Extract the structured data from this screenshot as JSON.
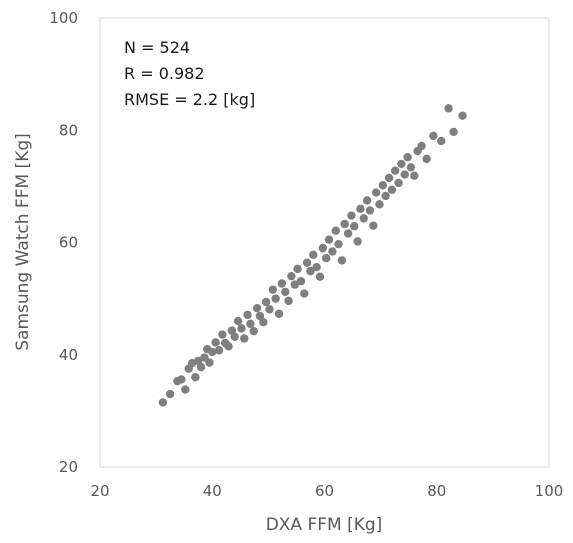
{
  "chart_data": {
    "type": "scatter",
    "title": "",
    "xlabel": "DXA FFM [Kg]",
    "ylabel": "Samsung Watch FFM [Kg]",
    "xlim": [
      20,
      100
    ],
    "ylim": [
      20,
      100
    ],
    "x_ticks": [
      "20",
      "40",
      "60",
      "80",
      "100"
    ],
    "y_ticks": [
      "20",
      "40",
      "60",
      "80",
      "100"
    ],
    "grid": false,
    "legend": "none",
    "marker_color": "#7f7f7f",
    "annotations": [
      "N = 524",
      "R = 0.982",
      "RMSE = 2.2 [kg]"
    ],
    "series": [
      {
        "x": [
          31.2,
          32.5,
          33.8,
          34.5,
          35.2,
          35.8,
          36.4,
          37.0,
          37.5,
          38.0,
          38.6,
          39.1,
          39.5,
          40.0,
          40.6,
          41.2,
          41.8,
          42.3,
          42.9,
          43.5,
          44.0,
          44.6,
          45.2,
          45.7,
          46.3,
          46.8,
          47.4,
          48.0,
          48.5,
          49.1,
          49.6,
          50.2,
          50.8,
          51.3,
          51.9,
          52.4,
          53.0,
          53.6,
          54.1,
          54.7,
          55.2,
          55.8,
          56.4,
          56.9,
          57.5,
          58.0,
          58.6,
          59.2,
          59.7,
          60.3,
          60.8,
          61.4,
          62.0,
          62.5,
          63.1,
          63.6,
          64.2,
          64.8,
          65.3,
          65.9,
          66.4,
          67.0,
          67.6,
          68.1,
          68.7,
          69.2,
          69.8,
          70.4,
          70.9,
          71.5,
          72.0,
          72.6,
          73.2,
          73.7,
          74.3,
          74.8,
          75.4,
          76.0,
          76.6,
          77.3,
          78.2,
          79.4,
          80.8,
          82.1,
          83.0,
          84.6
        ],
        "y": [
          31.5,
          33.0,
          35.3,
          35.6,
          33.8,
          37.5,
          38.5,
          36.0,
          38.9,
          37.8,
          39.5,
          41.0,
          38.6,
          40.5,
          42.2,
          40.8,
          43.6,
          42.1,
          41.5,
          44.3,
          43.2,
          46.0,
          44.7,
          42.9,
          47.1,
          45.5,
          44.2,
          48.3,
          46.9,
          45.8,
          49.4,
          48.1,
          51.6,
          50.0,
          47.3,
          52.7,
          51.2,
          49.6,
          54.0,
          52.5,
          55.3,
          53.1,
          50.9,
          56.4,
          54.9,
          57.8,
          55.6,
          53.9,
          59.0,
          57.2,
          60.5,
          58.4,
          62.1,
          59.7,
          56.8,
          63.3,
          61.6,
          64.8,
          62.9,
          60.2,
          66.0,
          64.3,
          67.5,
          65.7,
          63.0,
          68.9,
          66.8,
          70.2,
          68.3,
          71.5,
          69.4,
          72.8,
          70.6,
          74.0,
          72.1,
          75.2,
          73.4,
          71.9,
          76.3,
          77.2,
          74.9,
          79.0,
          78.1,
          83.9,
          79.7,
          82.6
        ]
      }
    ]
  }
}
